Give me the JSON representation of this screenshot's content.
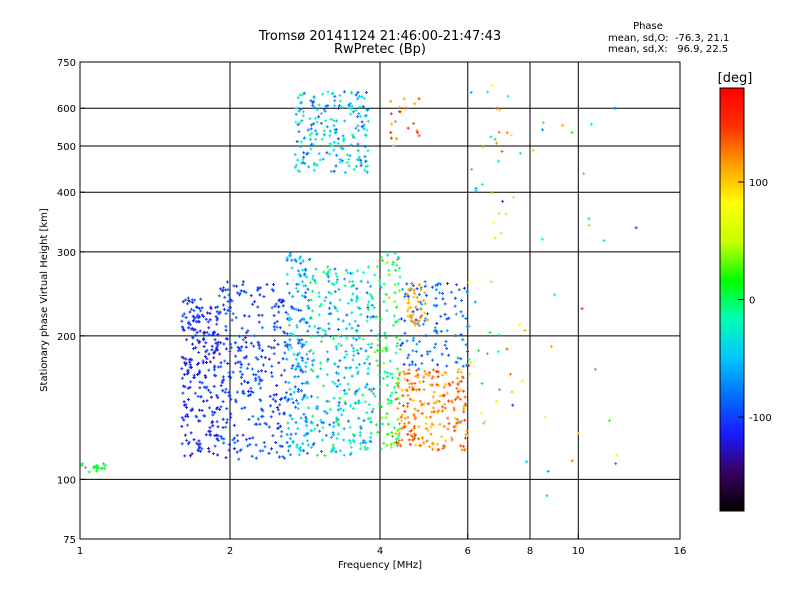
{
  "chart_data": {
    "type": "scatter",
    "title": "Tromsø 20141124 21:46:00-21:47:43",
    "subtitle": "RwPretec (Bp)",
    "xlabel": "Frequency [MHz]",
    "ylabel": "Stationary phase Virtual Height [km]",
    "x_scale": "log",
    "y_scale": "log",
    "xlim": [
      1,
      16
    ],
    "ylim": [
      75,
      750
    ],
    "x_ticks": [
      1,
      2,
      4,
      6,
      8,
      10,
      16
    ],
    "x_tick_labels": [
      "1",
      "2",
      "4",
      "6",
      "8",
      "10",
      "16"
    ],
    "x_gridlines": [
      2,
      4,
      6,
      8,
      10
    ],
    "y_ticks": [
      75,
      100,
      200,
      300,
      400,
      500,
      600,
      750
    ],
    "y_tick_labels": [
      "75",
      "100",
      "200",
      "300",
      "400",
      "500",
      "600",
      "750"
    ],
    "y_gridlines": [
      100,
      200,
      300,
      400,
      500,
      600
    ],
    "grid": true,
    "stats": {
      "heading": "Phase",
      "line_o": "mean, sd,O:  -76.3, 21.1",
      "line_x": "mean, sd,X:   96.9, 22.5"
    },
    "colorbar": {
      "label": "[deg]",
      "range": [
        -180,
        180
      ],
      "ticks": [
        100,
        0,
        -100
      ],
      "tick_labels": [
        "100",
        "0",
        "-100"
      ],
      "colors": [
        "#000000",
        "#3a0060",
        "#1a1aff",
        "#0070ff",
        "#00c8ff",
        "#00ffb0",
        "#00ff00",
        "#c8ff00",
        "#ffff00",
        "#ffa000",
        "#ff3000",
        "#ff0000"
      ]
    },
    "clusters": [
      {
        "x": [
          1.0,
          1.15
        ],
        "y": [
          103,
          108
        ],
        "phase": [
          0,
          20
        ],
        "n": 18
      },
      {
        "x": [
          1.6,
          1.9
        ],
        "y": [
          112,
          230
        ],
        "phase": [
          -130,
          -90
        ],
        "n": 220
      },
      {
        "x": [
          1.6,
          1.75
        ],
        "y": [
          200,
          240
        ],
        "phase": [
          -120,
          -90
        ],
        "n": 30
      },
      {
        "x": [
          1.9,
          2.6
        ],
        "y": [
          110,
          260
        ],
        "phase": [
          -120,
          -80
        ],
        "n": 300
      },
      {
        "x": [
          2.6,
          2.9
        ],
        "y": [
          112,
          300
        ],
        "phase": [
          -100,
          -30
        ],
        "n": 180
      },
      {
        "x": [
          2.9,
          3.9
        ],
        "y": [
          112,
          280
        ],
        "phase": [
          -90,
          10
        ],
        "n": 320
      },
      {
        "x": [
          2.7,
          3.8
        ],
        "y": [
          440,
          650
        ],
        "phase": [
          -100,
          0
        ],
        "n": 200
      },
      {
        "x": [
          3.9,
          4.4
        ],
        "y": [
          115,
          300
        ],
        "phase": [
          -40,
          40
        ],
        "n": 120
      },
      {
        "x": [
          4.3,
          6.0
        ],
        "y": [
          115,
          170
        ],
        "phase": [
          100,
          150
        ],
        "n": 220
      },
      {
        "x": [
          4.4,
          6.0
        ],
        "y": [
          170,
          260
        ],
        "phase": [
          -110,
          -60
        ],
        "n": 120
      },
      {
        "x": [
          4.5,
          5.0
        ],
        "y": [
          210,
          260
        ],
        "phase": [
          100,
          130
        ],
        "n": 40
      },
      {
        "x": [
          4.2,
          4.8
        ],
        "y": [
          500,
          640
        ],
        "phase": [
          110,
          150
        ],
        "n": 20
      },
      {
        "x": [
          6.0,
          7.5
        ],
        "y": [
          130,
          680
        ],
        "phase": [
          -100,
          150
        ],
        "n": 50
      },
      {
        "x": [
          7.5,
          14.0
        ],
        "y": [
          85,
          600
        ],
        "phase": [
          -100,
          150
        ],
        "n": 30
      }
    ]
  }
}
